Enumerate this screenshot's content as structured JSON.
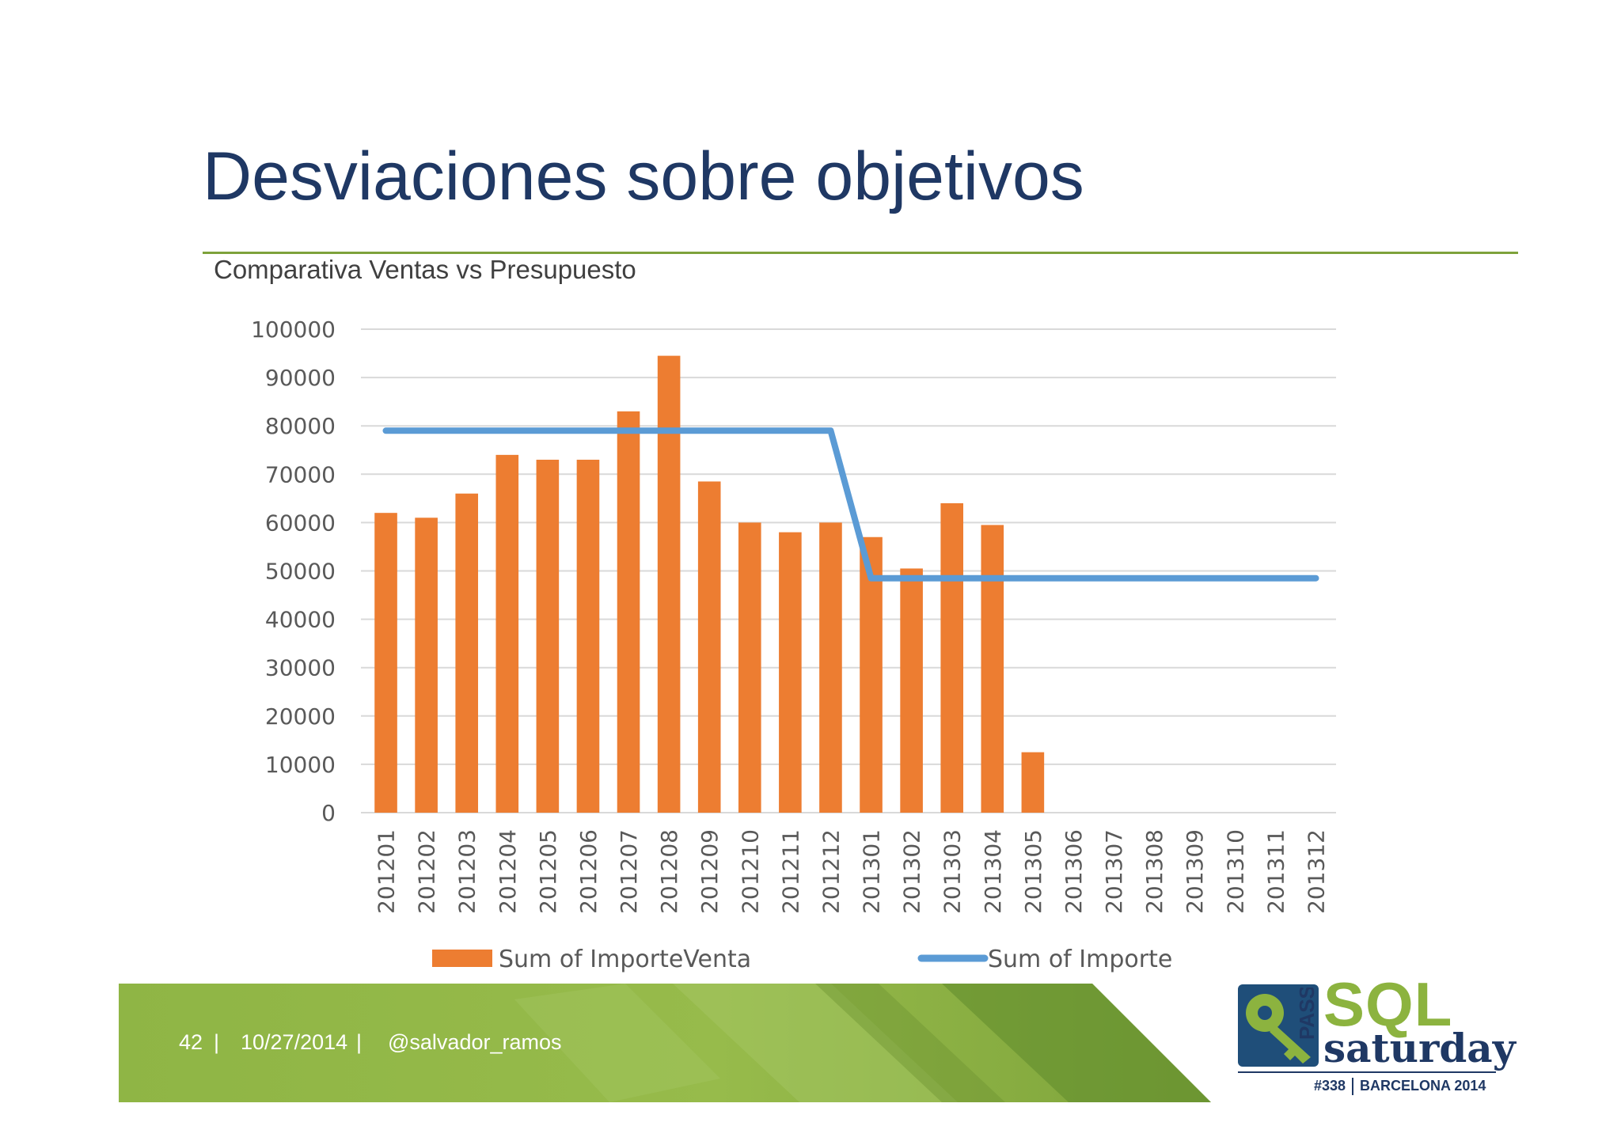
{
  "slide": {
    "title": "Desviaciones sobre objetivos",
    "subtitle": "Comparativa Ventas vs Presupuesto"
  },
  "footer": {
    "page": "42",
    "separator": "|",
    "date": "10/27/2014",
    "handle": "@salvador_ramos"
  },
  "logo": {
    "pass": "PASS",
    "sql": "SQL",
    "saturday": "saturday",
    "event_number": "#338",
    "event_location": "BARCELONA 2014"
  },
  "colors": {
    "bar": "#ed7d31",
    "line": "#5b9bd5",
    "title": "#1f3864",
    "accent_green": "#8cb33f",
    "grid": "#d9d9d9"
  },
  "chart_data": {
    "type": "bar",
    "categories": [
      "201201",
      "201202",
      "201203",
      "201204",
      "201205",
      "201206",
      "201207",
      "201208",
      "201209",
      "201210",
      "201211",
      "201212",
      "201301",
      "201302",
      "201303",
      "201304",
      "201305",
      "201306",
      "201307",
      "201308",
      "201309",
      "201310",
      "201311",
      "201312"
    ],
    "series": [
      {
        "name": "Sum of ImporteVenta",
        "type": "bar",
        "values": [
          62000,
          61000,
          66000,
          74000,
          73000,
          73000,
          83000,
          94500,
          68500,
          60000,
          58000,
          60000,
          57000,
          50500,
          64000,
          59500,
          12500,
          null,
          null,
          null,
          null,
          null,
          null,
          null
        ]
      },
      {
        "name": "Sum of Importe",
        "type": "line",
        "values": [
          79000,
          79000,
          79000,
          79000,
          79000,
          79000,
          79000,
          79000,
          79000,
          79000,
          79000,
          79000,
          48500,
          48500,
          48500,
          48500,
          48500,
          48500,
          48500,
          48500,
          48500,
          48500,
          48500,
          48500
        ]
      }
    ],
    "ylim": [
      0,
      100000
    ],
    "yticks": [
      "0",
      "10000",
      "20000",
      "30000",
      "40000",
      "50000",
      "60000",
      "70000",
      "80000",
      "90000",
      "100000"
    ],
    "grid": true,
    "legend": "bottom"
  }
}
